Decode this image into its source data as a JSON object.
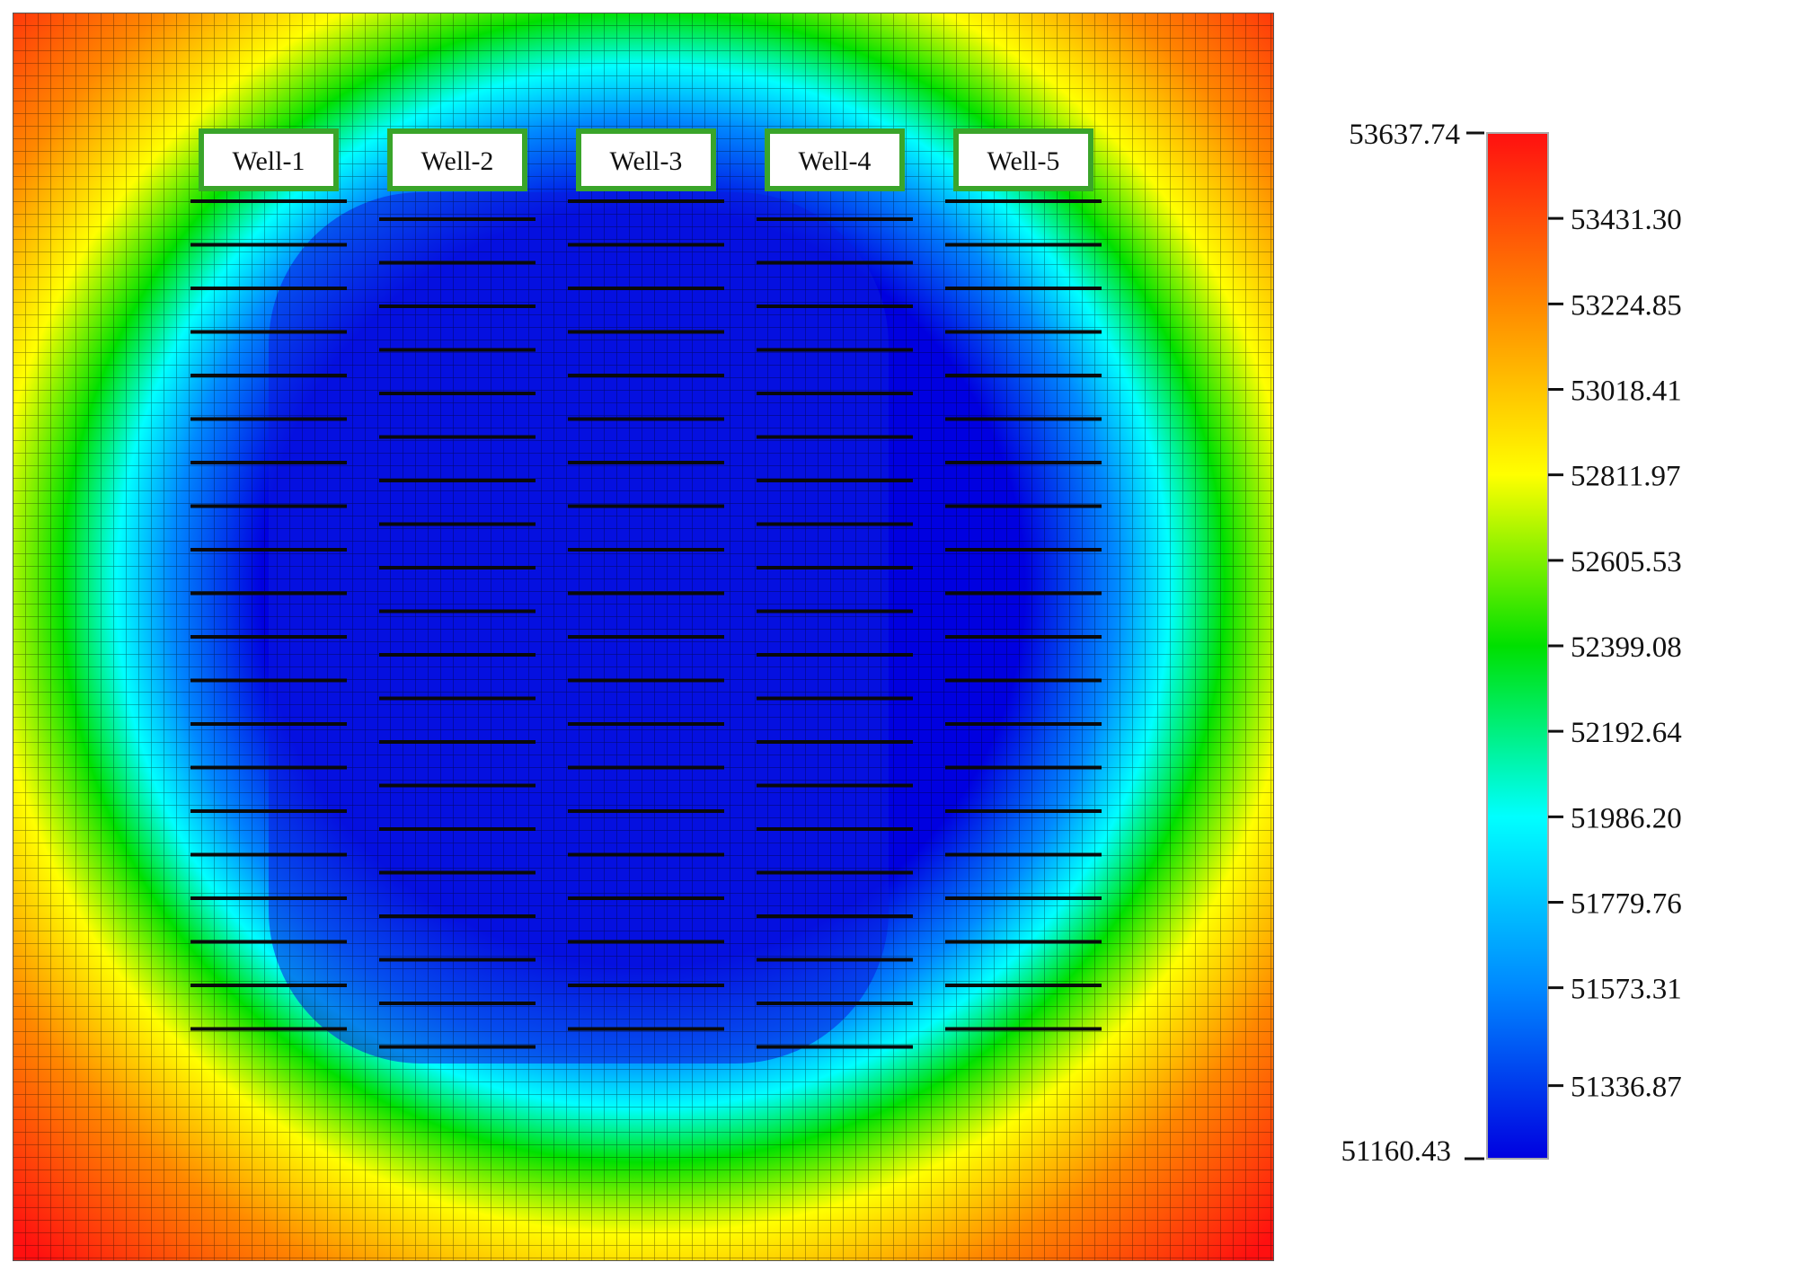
{
  "chart_data": {
    "type": "heatmap",
    "title": "",
    "colormap": [
      "#0000e0",
      "#0088ff",
      "#00ffff",
      "#00e000",
      "#ffff00",
      "#ff8800",
      "#ff1010"
    ],
    "value_range": [
      51160.43,
      53637.74
    ],
    "wells": [
      {
        "name": "Well-1"
      },
      {
        "name": "Well-2"
      },
      {
        "name": "Well-3"
      },
      {
        "name": "Well-4"
      },
      {
        "name": "Well-5"
      }
    ],
    "fractures_per_well": 20,
    "colorbar": {
      "min_label": "51160.43",
      "max_label": "53637.74",
      "ticks": [
        {
          "value": 53431.3,
          "label": "53431.30"
        },
        {
          "value": 53224.85,
          "label": "53224.85"
        },
        {
          "value": 53018.41,
          "label": "53018.41"
        },
        {
          "value": 52811.97,
          "label": "52811.97"
        },
        {
          "value": 52605.53,
          "label": "52605.53"
        },
        {
          "value": 52399.08,
          "label": "52399.08"
        },
        {
          "value": 52192.64,
          "label": "52192.64"
        },
        {
          "value": 51986.2,
          "label": "51986.20"
        },
        {
          "value": 51779.76,
          "label": "51779.76"
        },
        {
          "value": 51573.31,
          "label": "51573.31"
        },
        {
          "value": 51336.87,
          "label": "51336.87"
        }
      ]
    }
  }
}
